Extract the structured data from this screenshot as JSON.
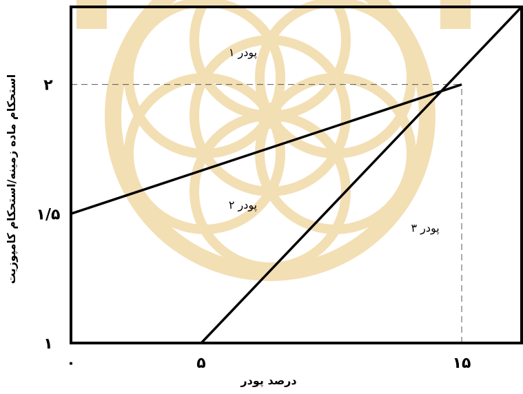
{
  "chart_data": {
    "type": "line",
    "title": "",
    "xlabel": "درصد پودر",
    "ylabel": "استحکام ماده زمینه/استحکام کامپوزیت",
    "xlim": [
      0,
      17.3
    ],
    "ylim": [
      1,
      2.3
    ],
    "x_ticks": [
      {
        "value": 0,
        "label": "۰"
      },
      {
        "value": 5,
        "label": "۵"
      },
      {
        "value": 15,
        "label": "۱۵"
      }
    ],
    "y_ticks": [
      {
        "value": 1,
        "label": "۱"
      },
      {
        "value": 1.5,
        "label": "۱/۵"
      },
      {
        "value": 2,
        "label": "۲"
      }
    ],
    "series": [
      {
        "x": [
          0,
          15
        ],
        "y": [
          1.5,
          2.0
        ]
      },
      {
        "x": [
          5,
          17.3
        ],
        "y": [
          1.0,
          2.3
        ]
      }
    ],
    "reference_lines": [
      {
        "orientation": "horizontal",
        "y": 2.0,
        "x_from": 0,
        "x_to": 15,
        "style": "dashed"
      },
      {
        "orientation": "vertical",
        "x": 15,
        "y_from": 1.0,
        "y_to": 2.0,
        "style": "dashed"
      }
    ],
    "annotations": [
      {
        "text": "پودر ۱",
        "x": 6.6,
        "y": 2.11
      },
      {
        "text": "پودر ۲",
        "x": 6.6,
        "y": 1.52
      },
      {
        "text": "پودر ۳",
        "x": 13.6,
        "y": 1.43
      }
    ],
    "grid": false,
    "legend": "none",
    "colors": {
      "line": "#000000",
      "guide": "#555555",
      "watermark": "#f3dfb4"
    }
  }
}
